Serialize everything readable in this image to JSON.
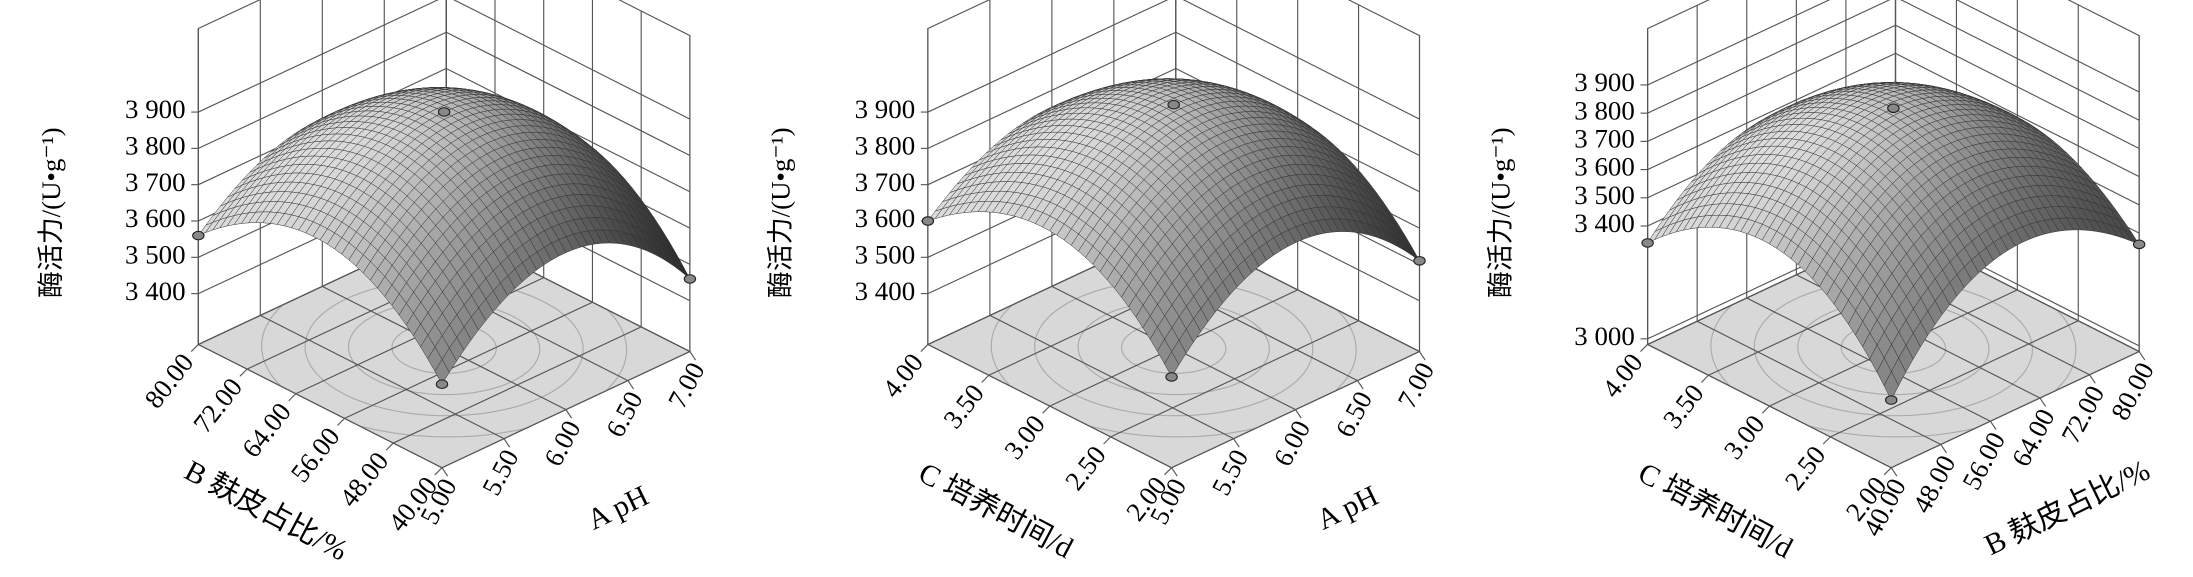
{
  "chart_data": [
    {
      "type": "surface",
      "z_label": "酶活力/(U•g⁻¹)",
      "x_label": "A pH",
      "y_label": "B 麸皮占比/%",
      "xlim": [
        5,
        7
      ],
      "xticks": [
        {
          "value": 5,
          "label": "5.00"
        },
        {
          "value": 5.5,
          "label": "5.50"
        },
        {
          "value": 6,
          "label": "6.00"
        },
        {
          "value": 6.5,
          "label": "6.50"
        },
        {
          "value": 7,
          "label": "7.00"
        }
      ],
      "ylim": [
        40,
        80
      ],
      "yticks": [
        {
          "value": 40,
          "label": "40.00"
        },
        {
          "value": 48,
          "label": "48.00"
        },
        {
          "value": 56,
          "label": "56.00"
        },
        {
          "value": 64,
          "label": "64.00"
        },
        {
          "value": 72,
          "label": "72.00"
        },
        {
          "value": 80,
          "label": "80.00"
        }
      ],
      "zlim": [
        3260,
        4130
      ],
      "zticks": [
        {
          "value": 3400,
          "label": "3 400"
        },
        {
          "value": 3500,
          "label": "3 500"
        },
        {
          "value": 3600,
          "label": "3 600"
        },
        {
          "value": 3700,
          "label": "3 700"
        },
        {
          "value": 3800,
          "label": "3 800"
        },
        {
          "value": 3900,
          "label": "3 900"
        }
      ],
      "points": {
        "x": [
          6,
          5,
          7,
          5
        ],
        "y": [
          60,
          40,
          40,
          80
        ],
        "z": [
          3910,
          3490,
          3460,
          3560
        ]
      }
    },
    {
      "type": "surface",
      "z_label": "酶活力/(U•g⁻¹)",
      "x_label": "A pH",
      "y_label": "C 培养时间/d",
      "xlim": [
        5,
        7
      ],
      "xticks": [
        {
          "value": 5,
          "label": "5.00"
        },
        {
          "value": 5.5,
          "label": "5.50"
        },
        {
          "value": 6,
          "label": "6.00"
        },
        {
          "value": 6.5,
          "label": "6.50"
        },
        {
          "value": 7,
          "label": "7.00"
        }
      ],
      "ylim": [
        2,
        4
      ],
      "yticks": [
        {
          "value": 2,
          "label": "2.00"
        },
        {
          "value": 2.5,
          "label": "2.50"
        },
        {
          "value": 3,
          "label": "3.00"
        },
        {
          "value": 3.5,
          "label": "3.50"
        },
        {
          "value": 4,
          "label": "4.00"
        }
      ],
      "zlim": [
        3260,
        4130
      ],
      "zticks": [
        {
          "value": 3400,
          "label": "3 400"
        },
        {
          "value": 3500,
          "label": "3 500"
        },
        {
          "value": 3600,
          "label": "3 600"
        },
        {
          "value": 3700,
          "label": "3 700"
        },
        {
          "value": 3800,
          "label": "3 800"
        },
        {
          "value": 3900,
          "label": "3 900"
        }
      ],
      "points": {
        "x": [
          6,
          5,
          7,
          5
        ],
        "y": [
          3,
          2,
          2,
          4
        ],
        "z": [
          3930,
          3510,
          3510,
          3600
        ]
      }
    },
    {
      "type": "surface",
      "z_label": "酶活力/(U•g⁻¹)",
      "x_label": "B 麸皮占比/%",
      "y_label": "C 培养时间/d",
      "xlim": [
        40,
        80
      ],
      "xticks": [
        {
          "value": 40,
          "label": "40.00"
        },
        {
          "value": 48,
          "label": "48.00"
        },
        {
          "value": 56,
          "label": "56.00"
        },
        {
          "value": 64,
          "label": "64.00"
        },
        {
          "value": 72,
          "label": "72.00"
        },
        {
          "value": 80,
          "label": "80.00"
        }
      ],
      "ylim": [
        2,
        4
      ],
      "yticks": [
        {
          "value": 2,
          "label": "2.00"
        },
        {
          "value": 2.5,
          "label": "2.50"
        },
        {
          "value": 3,
          "label": "3.00"
        },
        {
          "value": 3.5,
          "label": "3.50"
        },
        {
          "value": 4,
          "label": "4.00"
        }
      ],
      "zlim": [
        2980,
        4100
      ],
      "zticks": [
        {
          "value": 3000,
          "label": "3 000"
        },
        {
          "value": 3400,
          "label": "3 400"
        },
        {
          "value": 3500,
          "label": "3 500"
        },
        {
          "value": 3600,
          "label": "3 600"
        },
        {
          "value": 3700,
          "label": "3 700"
        },
        {
          "value": 3800,
          "label": "3 800"
        },
        {
          "value": 3900,
          "label": "3 900"
        }
      ],
      "points": {
        "x": [
          60,
          40,
          80,
          40
        ],
        "y": [
          3,
          2,
          2,
          4
        ],
        "z": [
          3830,
          3220,
          3360,
          3340
        ]
      }
    }
  ]
}
